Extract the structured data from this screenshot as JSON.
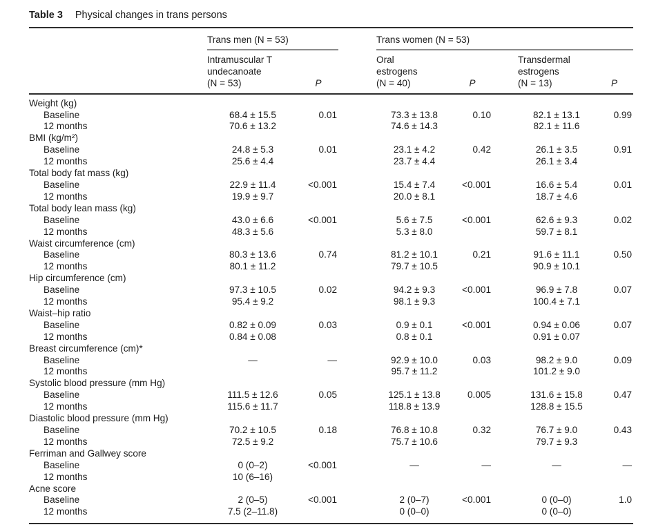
{
  "caption": {
    "label": "Table 3",
    "title": "Physical changes in trans persons"
  },
  "groups": [
    {
      "label": "Trans men (N = 53)"
    },
    {
      "label": "Trans women (N = 53)"
    }
  ],
  "columns": [
    {
      "name": "intramuscular-t-undecanoate",
      "lines": [
        "Intramuscular T",
        "undecanoate",
        "(N = 53)"
      ],
      "italic": false
    },
    {
      "name": "p-trans-men",
      "lines": [
        "P"
      ],
      "italic": true
    },
    {
      "name": "oral-estrogens",
      "lines": [
        "Oral",
        "estrogens",
        "(N = 40)"
      ],
      "italic": false
    },
    {
      "name": "p-oral-estrogens",
      "lines": [
        "P"
      ],
      "italic": true
    },
    {
      "name": "transdermal-estrogens",
      "lines": [
        "Transdermal",
        "estrogens",
        "(N = 13)"
      ],
      "italic": false
    },
    {
      "name": "p-transdermal-estrogens",
      "lines": [
        "P"
      ],
      "italic": true
    }
  ],
  "sections": [
    {
      "label": "Weight (kg)",
      "rows": [
        {
          "label": "Baseline",
          "values": [
            "68.4 ± 15.5",
            "0.01",
            "73.3 ± 13.8",
            "0.10",
            "82.1 ± 13.1",
            "0.99"
          ]
        },
        {
          "label": "12 months",
          "values": [
            "70.6 ± 13.2",
            "",
            "74.6 ± 14.3",
            "",
            "82.1 ± 11.6",
            ""
          ]
        }
      ]
    },
    {
      "label": "BMI (kg/m²)",
      "rows": [
        {
          "label": "Baseline",
          "values": [
            "24.8 ± 5.3",
            "0.01",
            "23.1 ± 4.2",
            "0.42",
            "26.1 ± 3.5",
            "0.91"
          ]
        },
        {
          "label": "12 months",
          "values": [
            "25.6 ± 4.4",
            "",
            "23.7 ± 4.4",
            "",
            "26.1 ± 3.4",
            ""
          ]
        }
      ]
    },
    {
      "label": "Total body fat mass (kg)",
      "rows": [
        {
          "label": "Baseline",
          "values": [
            "22.9 ± 11.4",
            "<0.001",
            "15.4 ± 7.4",
            "<0.001",
            "16.6 ± 5.4",
            "0.01"
          ]
        },
        {
          "label": "12 months",
          "values": [
            "19.9 ± 9.7",
            "",
            "20.0 ± 8.1",
            "",
            "18.7 ± 4.6",
            ""
          ]
        }
      ]
    },
    {
      "label": "Total body lean mass (kg)",
      "rows": [
        {
          "label": "Baseline",
          "values": [
            "43.0 ± 6.6",
            "<0.001",
            "5.6 ± 7.5",
            "<0.001",
            "62.6 ± 9.3",
            "0.02"
          ]
        },
        {
          "label": "12 months",
          "values": [
            "48.3 ± 5.6",
            "",
            "5.3 ± 8.0",
            "",
            "59.7 ± 8.1",
            ""
          ]
        }
      ]
    },
    {
      "label": "Waist circumference (cm)",
      "rows": [
        {
          "label": "Baseline",
          "values": [
            "80.3 ± 13.6",
            "0.74",
            "81.2 ± 10.1",
            "0.21",
            "91.6 ± 11.1",
            "0.50"
          ]
        },
        {
          "label": "12 months",
          "values": [
            "80.1 ± 11.2",
            "",
            "79.7 ± 10.5",
            "",
            "90.9 ± 10.1",
            ""
          ]
        }
      ]
    },
    {
      "label": "Hip circumference (cm)",
      "rows": [
        {
          "label": "Baseline",
          "values": [
            "97.3 ± 10.5",
            "0.02",
            "94.2 ± 9.3",
            "<0.001",
            "96.9 ± 7.8",
            "0.07"
          ]
        },
        {
          "label": "12 months",
          "values": [
            "95.4 ± 9.2",
            "",
            "98.1 ± 9.3",
            "",
            "100.4 ± 7.1",
            ""
          ]
        }
      ]
    },
    {
      "label": "Waist–hip ratio",
      "rows": [
        {
          "label": "Baseline",
          "values": [
            "0.82 ± 0.09",
            "0.03",
            "0.9 ± 0.1",
            "<0.001",
            "0.94 ± 0.06",
            "0.07"
          ]
        },
        {
          "label": "12 months",
          "values": [
            "0.84 ± 0.08",
            "",
            "0.8 ± 0.1",
            "",
            "0.91 ± 0.07",
            ""
          ]
        }
      ]
    },
    {
      "label": "Breast circumference (cm)*",
      "rows": [
        {
          "label": "Baseline",
          "values": [
            "—",
            "—",
            "92.9 ± 10.0",
            "0.03",
            "98.2 ± 9.0",
            "0.09"
          ]
        },
        {
          "label": "12 months",
          "values": [
            "",
            "",
            "95.7 ± 11.2",
            "",
            "101.2 ± 9.0",
            ""
          ]
        }
      ]
    },
    {
      "label": "Systolic blood pressure (mm Hg)",
      "rows": [
        {
          "label": "Baseline",
          "values": [
            "111.5 ± 12.6",
            "0.05",
            "125.1 ± 13.8",
            "0.005",
            "131.6 ± 15.8",
            "0.47"
          ]
        },
        {
          "label": "12 months",
          "values": [
            "115.6 ± 11.7",
            "",
            "118.8 ± 13.9",
            "",
            "128.8 ± 15.5",
            ""
          ]
        }
      ]
    },
    {
      "label": "Diastolic blood pressure (mm Hg)",
      "rows": [
        {
          "label": "Baseline",
          "values": [
            "70.2 ± 10.5",
            "0.18",
            "76.8 ± 10.8",
            "0.32",
            "76.7 ± 9.0",
            "0.43"
          ]
        },
        {
          "label": "12 months",
          "values": [
            "72.5 ± 9.2",
            "",
            "75.7 ± 10.6",
            "",
            "79.7 ± 9.3",
            ""
          ]
        }
      ]
    },
    {
      "label": "Ferriman and Gallwey score",
      "rows": [
        {
          "label": "Baseline",
          "values": [
            "0 (0–2)",
            "<0.001",
            "—",
            "—",
            "—",
            "—"
          ]
        },
        {
          "label": "12 months",
          "values": [
            "10 (6–16)",
            "",
            "",
            "",
            "",
            ""
          ]
        }
      ]
    },
    {
      "label": "Acne score",
      "rows": [
        {
          "label": "Baseline",
          "values": [
            "2 (0–5)",
            "<0.001",
            "2 (0–7)",
            "<0.001",
            "0 (0–0)",
            "1.0"
          ]
        },
        {
          "label": "12 months",
          "values": [
            "7.5 (2–11.8)",
            "",
            "0 (0–0)",
            "",
            "0 (0–0)",
            ""
          ]
        }
      ]
    }
  ],
  "colors": {
    "background": "#ffffff",
    "text": "#1c1c1c",
    "rule_heavy": "#2e2e2e",
    "rule_light": "#8c8c8c"
  }
}
